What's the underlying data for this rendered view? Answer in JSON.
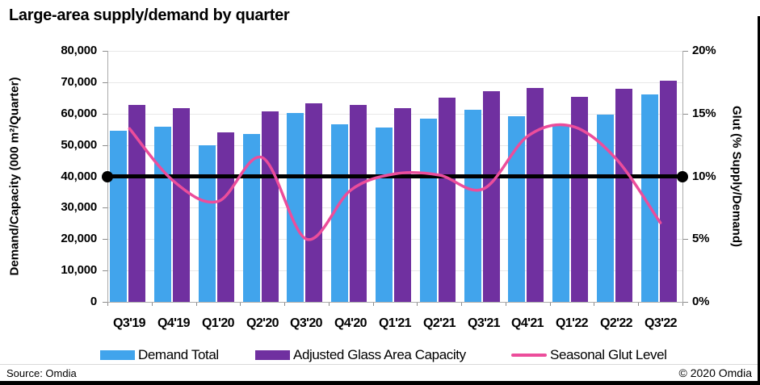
{
  "title": "Large-area supply/demand by quarter",
  "footer": {
    "source": "Source: Omdia",
    "copyright": "© 2020 Omdia"
  },
  "chart_data": {
    "type": "bar",
    "subtype": "grouped bars with smoothed line overlay (combo chart)",
    "categories": [
      "Q3'19",
      "Q4'19",
      "Q1'20",
      "Q2'20",
      "Q3'20",
      "Q4'20",
      "Q1'21",
      "Q2'21",
      "Q3'21",
      "Q4'21",
      "Q1'22",
      "Q2'22",
      "Q3'22"
    ],
    "series": [
      {
        "name": "Demand Total",
        "type": "bar",
        "axis": "left",
        "color": "#41A4EC",
        "values": [
          54500,
          55800,
          49800,
          53600,
          60100,
          56700,
          55500,
          58400,
          61300,
          59300,
          56100,
          59600,
          66100
        ]
      },
      {
        "name": "Adjusted Glass Area Capacity",
        "type": "bar",
        "axis": "left",
        "color": "#7030A0",
        "values": [
          62900,
          61700,
          54100,
          60600,
          63400,
          62700,
          61800,
          65000,
          67200,
          68100,
          65300,
          67900,
          70400
        ]
      },
      {
        "name": "Seasonal Glut Level",
        "type": "line",
        "axis": "right",
        "color": "#EC4D9B",
        "unit": "%",
        "values": [
          13.8,
          9.6,
          8.0,
          11.5,
          5.0,
          8.9,
          10.2,
          10.1,
          9.0,
          13.2,
          14.0,
          11.4,
          6.3
        ]
      }
    ],
    "reference_line": {
      "axis": "right",
      "value": 10,
      "color": "#000000"
    },
    "left_axis": {
      "title": "Demand/Capacity (000 m²/Quarter)",
      "min": 0,
      "max": 80000,
      "step": 10000,
      "tick_labels": [
        "0",
        "10,000",
        "20,000",
        "30,000",
        "40,000",
        "50,000",
        "60,000",
        "70,000",
        "80,000"
      ]
    },
    "right_axis": {
      "title": "Glut (% Supply/Demand)",
      "min": 0,
      "max": 20,
      "step": 5,
      "tick_labels": [
        "0%",
        "5%",
        "10%",
        "15%",
        "20%"
      ]
    },
    "legend_position": "bottom",
    "grid": "horizontal"
  }
}
